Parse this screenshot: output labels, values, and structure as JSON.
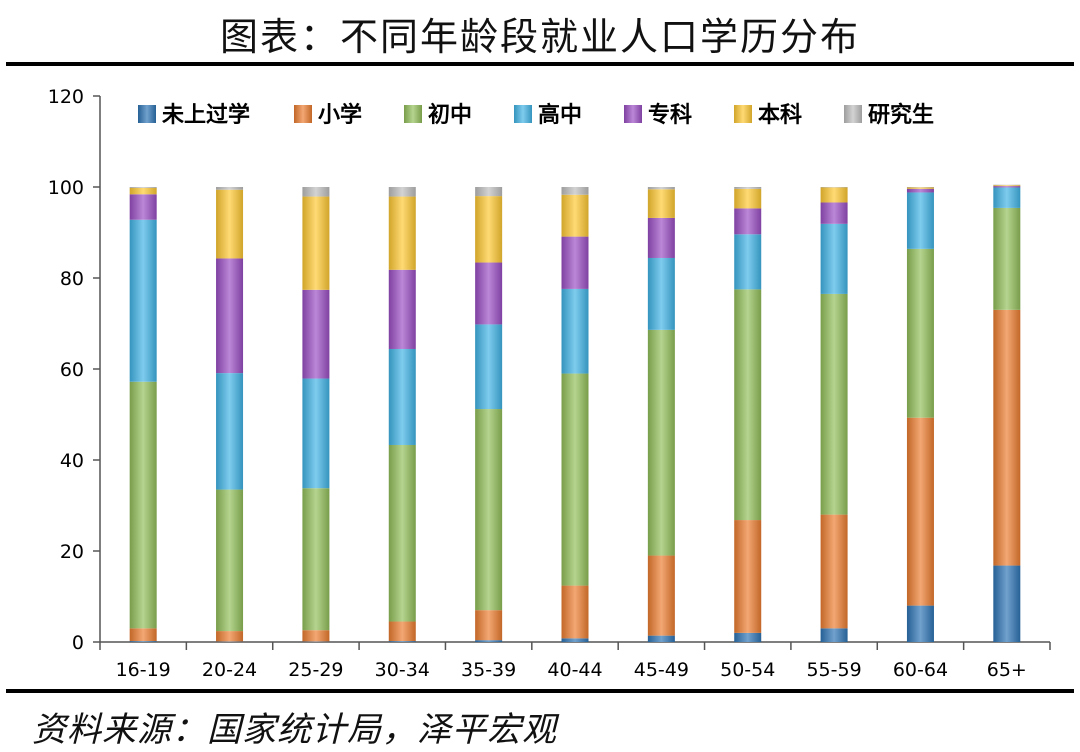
{
  "title": "图表：不同年龄段就业人口学历分布",
  "source": "资料来源：国家统计局，泽平宏观",
  "chart_data": {
    "type": "bar",
    "stacked": true,
    "categories": [
      "16-19",
      "20-24",
      "25-29",
      "30-34",
      "35-39",
      "40-44",
      "45-49",
      "50-54",
      "55-59",
      "60-64",
      "65+"
    ],
    "ylim": [
      0,
      120
    ],
    "yticks": [
      0,
      20,
      40,
      60,
      80,
      100,
      120
    ],
    "grid": false,
    "legend_position": "top",
    "series": [
      {
        "name": "未上过学",
        "color": "#2e75b6",
        "values": [
          0.2,
          0.1,
          0.1,
          0.2,
          0.4,
          0.8,
          1.4,
          2.0,
          3.0,
          8.0,
          16.8
        ]
      },
      {
        "name": "小学",
        "color": "#ed7d31",
        "values": [
          2.8,
          2.3,
          2.5,
          4.3,
          6.6,
          11.6,
          17.6,
          24.8,
          25.0,
          41.3,
          56.2
        ]
      },
      {
        "name": "初中",
        "color": "#92c05a",
        "values": [
          54.2,
          31.1,
          31.2,
          38.8,
          44.2,
          46.6,
          49.6,
          50.7,
          48.5,
          37.1,
          22.4
        ]
      },
      {
        "name": "高中",
        "color": "#41b4e6",
        "values": [
          35.6,
          25.6,
          24.1,
          21.1,
          18.6,
          18.6,
          15.8,
          12.1,
          15.4,
          12.4,
          4.5
        ]
      },
      {
        "name": "专科",
        "color": "#9b4fc4",
        "values": [
          5.6,
          25.2,
          19.5,
          17.4,
          13.6,
          11.5,
          8.8,
          5.7,
          4.7,
          0.8,
          0.3
        ]
      },
      {
        "name": "本科",
        "color": "#ffc933",
        "values": [
          1.4,
          15.1,
          20.5,
          16.1,
          14.6,
          9.2,
          6.3,
          4.3,
          3.3,
          0.3,
          0.2
        ]
      },
      {
        "name": "研究生",
        "color": "#bfbfbf",
        "values": [
          0.2,
          0.6,
          2.1,
          2.1,
          2.0,
          1.7,
          0.5,
          0.4,
          0.1,
          0.1,
          0.1
        ]
      }
    ]
  }
}
